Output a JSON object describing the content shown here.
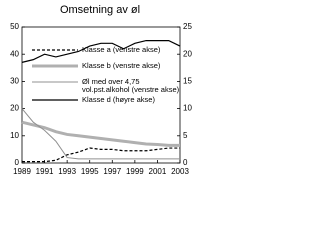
{
  "chart_data": {
    "type": "line",
    "title": "Omsetning av øl",
    "x": [
      1989,
      1990,
      1991,
      1992,
      1993,
      1994,
      1995,
      1996,
      1997,
      1998,
      1999,
      2000,
      2001,
      2002,
      2003
    ],
    "xlim": [
      1989,
      2003
    ],
    "xticks": [
      1989,
      1991,
      1993,
      1995,
      1997,
      1999,
      2001,
      2003
    ],
    "ylim": [
      0,
      50
    ],
    "yticks": [
      0,
      10,
      20,
      30,
      40,
      50
    ],
    "y2lim": [
      0,
      25
    ],
    "y2ticks": [
      0,
      5,
      10,
      15,
      20,
      25
    ],
    "series": [
      {
        "name": "Klasse a (venstre akse)",
        "color": "#000000",
        "dash": true,
        "width": 1.2,
        "values": [
          0.5,
          0.5,
          0.5,
          1,
          3,
          4,
          5.5,
          5,
          5,
          4.5,
          4.5,
          4.5,
          5,
          5.5,
          5.5
        ]
      },
      {
        "name": "Klasse b (venstre akse)",
        "color": "#b0b0b0",
        "width": 3,
        "values": [
          15,
          14,
          13,
          11.5,
          10.5,
          10,
          9.5,
          9,
          8.5,
          8,
          7.5,
          7,
          6.8,
          6.5,
          6.5
        ]
      },
      {
        "name": "Øl med over 4,75 vol.pst.alkohol (venstre akse)",
        "color": "#909090",
        "width": 1,
        "values": [
          20,
          15,
          12,
          8,
          2,
          1.5,
          1.5,
          1.5,
          1.5,
          1.5,
          1.5,
          1.5,
          1.5,
          1.5,
          1.5
        ]
      },
      {
        "name": "Klasse d (høyre akse)",
        "color": "#000000",
        "width": 1.2,
        "axis": "y2",
        "values": [
          18.5,
          19,
          20,
          19.5,
          20,
          20.5,
          21.5,
          22,
          22,
          21,
          22,
          22.5,
          22.5,
          22.5,
          21.5
        ]
      }
    ]
  }
}
